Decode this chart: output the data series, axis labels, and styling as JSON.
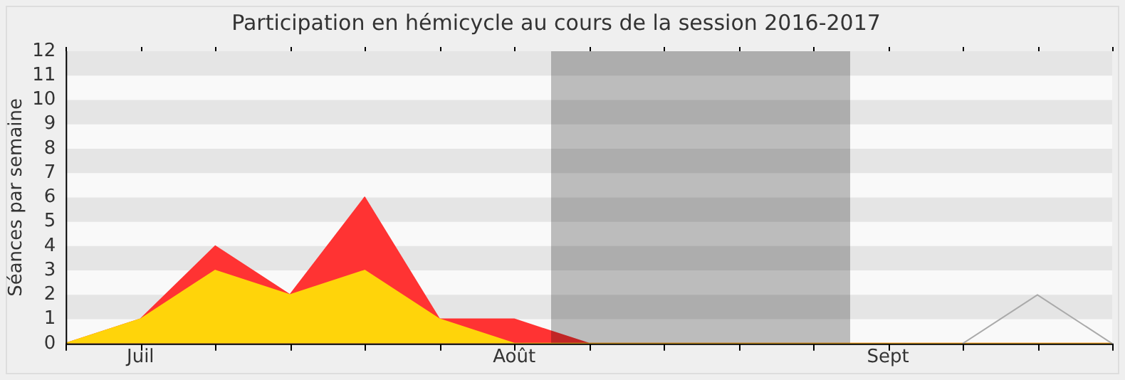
{
  "chart_data": {
    "type": "area",
    "title": "Participation en hémicycle au cours de la session 2016-2017",
    "ylabel": "Séances par semaine",
    "categories": [
      null,
      "Juil",
      null,
      null,
      null,
      null,
      "Août",
      null,
      null,
      null,
      null,
      "Sept",
      null,
      null,
      null
    ],
    "series": [
      {
        "color": "#ff3333",
        "values": [
          0,
          1,
          4,
          2,
          6,
          1,
          1,
          0,
          0,
          0,
          0,
          0,
          0,
          0,
          0
        ]
      },
      {
        "color": "#ffd40a",
        "values": [
          0,
          1,
          3,
          2,
          3,
          1,
          0,
          0,
          0,
          0,
          0,
          0,
          0,
          0,
          0
        ]
      },
      {
        "type": "line",
        "color": "#aaaaaa",
        "values": [
          null,
          null,
          null,
          null,
          null,
          null,
          null,
          null,
          null,
          null,
          null,
          null,
          0,
          2,
          0
        ]
      }
    ],
    "ylim": [
      0,
      12
    ],
    "yticks": [
      0,
      1,
      2,
      3,
      4,
      5,
      6,
      7,
      8,
      9,
      10,
      11,
      12
    ],
    "legend": false,
    "marker": "none"
  }
}
